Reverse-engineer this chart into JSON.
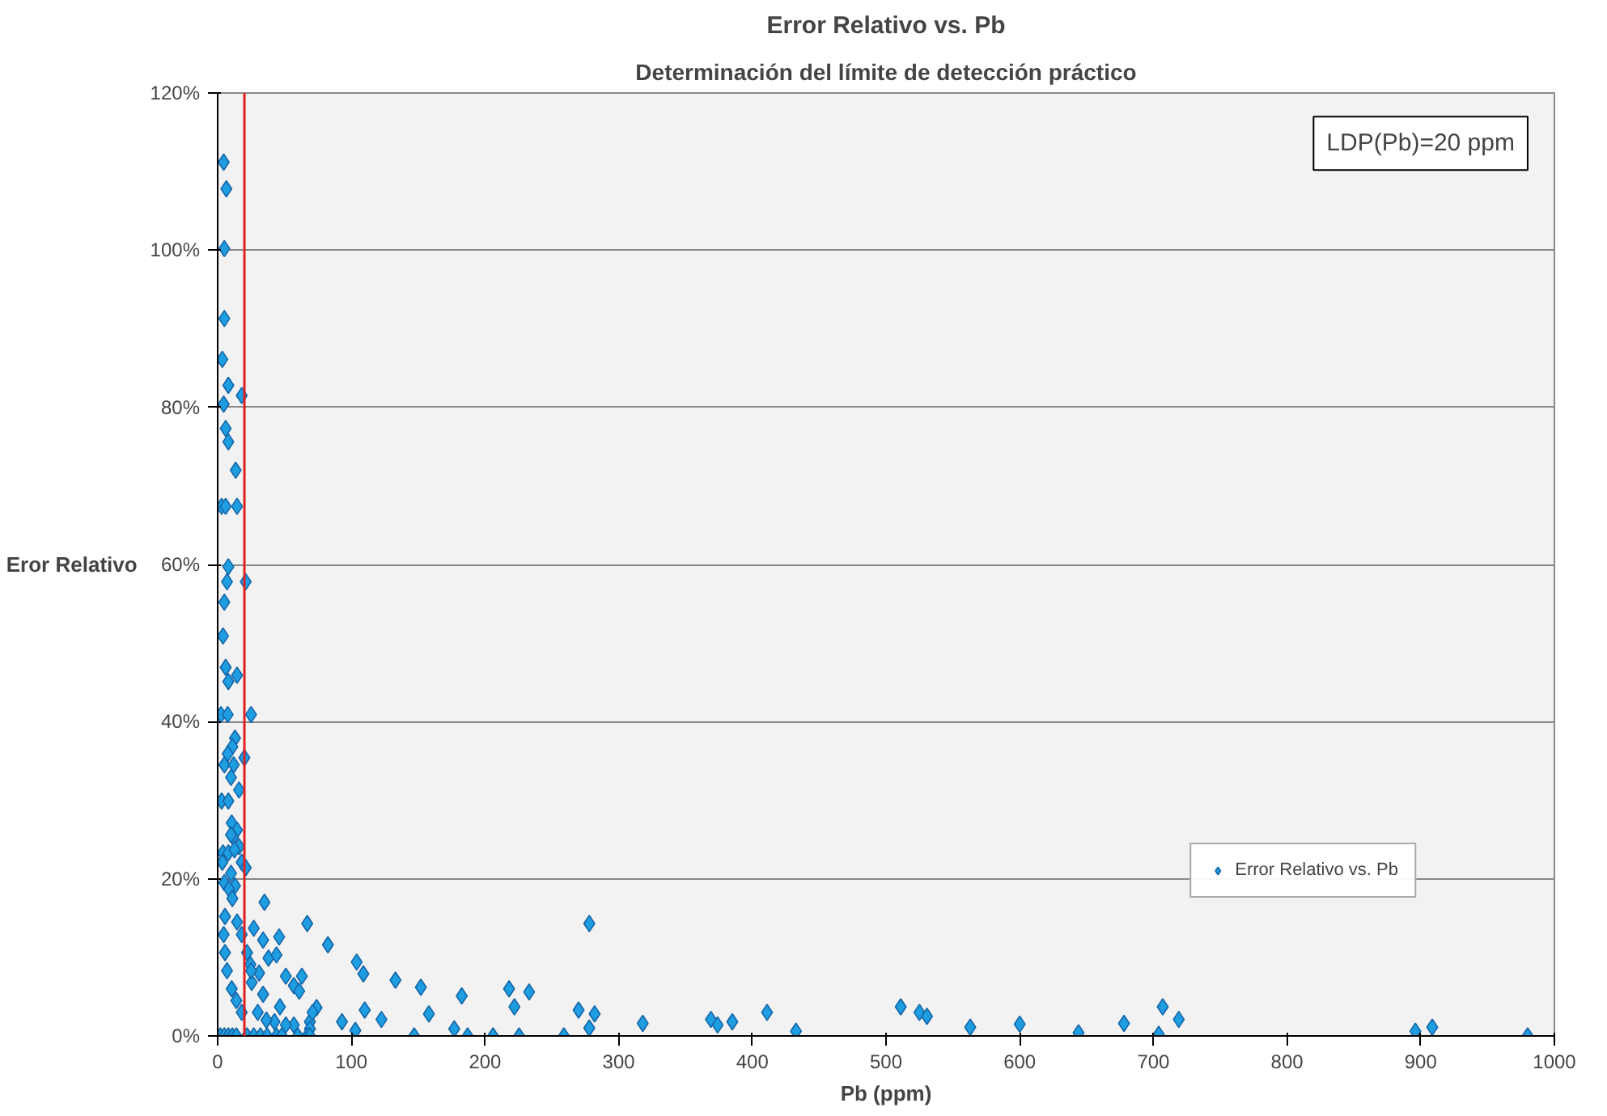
{
  "chart_data": {
    "type": "scatter",
    "title": "Error Relativo vs. Pb",
    "subtitle": "Determinación del límite de detección práctico",
    "xlabel": "Pb (ppm)",
    "ylabel": "Eror Relativo",
    "xlim": [
      0,
      1000
    ],
    "xticks": [
      0,
      100,
      200,
      300,
      400,
      500,
      600,
      700,
      800,
      900,
      1000
    ],
    "ylim": [
      0,
      120
    ],
    "yticks": [
      {
        "value": 0,
        "label": "0%"
      },
      {
        "value": 20,
        "label": "20%"
      },
      {
        "value": 40,
        "label": "40%"
      },
      {
        "value": 60,
        "label": "60%"
      },
      {
        "value": 80,
        "label": "80%"
      },
      {
        "value": 100,
        "label": "100%"
      },
      {
        "value": 120,
        "label": "120%"
      }
    ],
    "grid": "y",
    "legend": "bottom right",
    "marker": "diamond",
    "annotations": [
      "LDP(Pb)=20 ppm"
    ],
    "ref_lines": [
      {
        "axis": "x",
        "value": 20,
        "label": null,
        "color": "#e02020"
      }
    ],
    "series": [
      {
        "name": "Error Relativo vs. Pb",
        "color": "#1e9de0",
        "x": [
          4.5,
          6.5,
          5,
          5,
          3.5,
          8,
          18,
          4.5,
          6,
          8,
          13.5,
          3,
          6,
          14.5,
          8,
          7,
          21,
          5,
          4,
          6,
          8,
          14.5,
          2.5,
          7.5,
          25,
          13,
          11,
          7.5,
          20,
          5,
          12,
          10,
          16,
          3,
          8,
          10.5,
          14.5,
          11.5,
          4,
          8,
          16,
          18,
          21,
          5,
          10,
          13,
          35,
          67,
          82.5,
          104,
          109,
          133,
          152,
          182.6,
          218,
          222,
          233,
          278,
          270,
          282,
          318,
          110,
          122.5,
          93,
          103,
          74,
          158,
          177,
          147,
          187,
          206,
          225.5,
          259,
          278,
          46,
          27,
          34,
          38,
          44,
          51,
          57,
          63,
          61,
          46.6,
          34,
          30,
          42.5,
          57,
          69,
          71,
          69,
          25.5,
          24.5,
          31,
          5.5,
          4.5,
          5.5,
          7,
          10.5,
          14,
          18,
          8.5,
          12.6,
          10,
          3.5,
          11,
          14.5,
          18,
          22,
          25,
          36.5,
          51,
          2,
          5,
          8,
          11,
          14,
          22,
          27,
          32,
          37,
          44,
          48,
          60,
          67,
          69,
          369,
          374,
          385,
          411,
          432.6,
          511,
          525,
          530.6,
          563,
          600,
          644,
          678,
          707,
          704,
          719,
          896,
          908.6,
          980
        ],
        "values": [
          111.2,
          107.8,
          100.2,
          91.3,
          86.1,
          82.8,
          81.5,
          80.4,
          77.3,
          75.6,
          72,
          67.4,
          67.4,
          67.4,
          59.7,
          57.8,
          57.8,
          55.2,
          50.9,
          46.9,
          45.1,
          45.9,
          40.9,
          40.9,
          40.9,
          37.9,
          36.8,
          35.9,
          35.4,
          34.5,
          34.5,
          32.9,
          31.3,
          29.9,
          29.9,
          27.1,
          26.2,
          25.3,
          23.3,
          23.3,
          24.1,
          22.1,
          21.4,
          19.5,
          20.7,
          19.1,
          17,
          14.3,
          11.6,
          9.4,
          7.9,
          7.1,
          6.2,
          5.1,
          6.0,
          3.7,
          5.6,
          14.3,
          3.3,
          2.8,
          1.6,
          3.3,
          2.1,
          1.8,
          0.7,
          3.6,
          2.8,
          0.9,
          0,
          0,
          0,
          0,
          0,
          1.0,
          12.6,
          13.7,
          12.2,
          9.9,
          10.3,
          7.6,
          6.4,
          7.6,
          5.7,
          3.7,
          5.3,
          3.0,
          1.8,
          1.4,
          1.8,
          3.0,
          0.9,
          6.8,
          9.1,
          8.0,
          15.2,
          12.9,
          10.6,
          8.3,
          6.0,
          4.5,
          3.0,
          18.7,
          23.7,
          25.6,
          22.1,
          17.5,
          14.5,
          12.9,
          10.6,
          8.3,
          2.0,
          1.4,
          0,
          0,
          0,
          0,
          0,
          0,
          0,
          0,
          0,
          0,
          0,
          0,
          0,
          0,
          2.1,
          1.4,
          1.8,
          3.0,
          0.6,
          3.7,
          3.0,
          2.5,
          1.1,
          1.5,
          0.4,
          1.6,
          3.7,
          0.2,
          2.1,
          0.6,
          1.1,
          0
        ]
      }
    ]
  }
}
